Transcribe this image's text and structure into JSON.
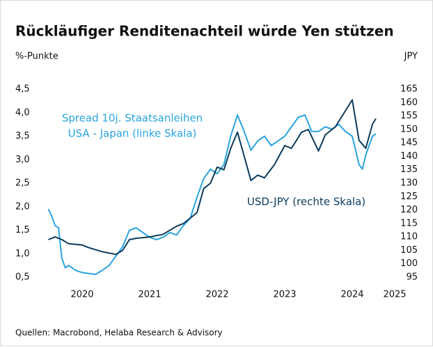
{
  "chart_data": {
    "type": "line",
    "title": "Rückläufiger Renditenachteil würde Yen stützen",
    "y_label": "%-Punkte",
    "y2_label": "JPY",
    "source": "Quellen: Macrobond, Helaba Research & Advisory",
    "annotations": [
      "Spread 10j. Staatsanleihen",
      "USA - Japan (linke Skala)",
      "USD-JPY (rechte Skala)"
    ],
    "xlim": [
      2020.0,
      2025.0
    ],
    "xticks": [
      2020,
      2021,
      2022,
      2023,
      2024,
      2025
    ],
    "ylim": [
      0.5,
      4.5
    ],
    "yticks": [
      {
        "value": 0.5,
        "label": "0,5"
      },
      {
        "value": 1.0,
        "label": "1,0"
      },
      {
        "value": 1.5,
        "label": "1,5"
      },
      {
        "value": 2.0,
        "label": "2,0"
      },
      {
        "value": 2.5,
        "label": "2,5"
      },
      {
        "value": 3.0,
        "label": "3,0"
      },
      {
        "value": 3.5,
        "label": "3,5"
      },
      {
        "value": 4.0,
        "label": "4,0"
      },
      {
        "value": 4.5,
        "label": "4,5"
      }
    ],
    "y2lim": [
      95,
      165
    ],
    "y2ticks": [
      95,
      100,
      105,
      110,
      115,
      120,
      125,
      130,
      135,
      140,
      145,
      150,
      155,
      160,
      165
    ],
    "grid": false,
    "series": [
      {
        "name": "Spread 10j. Staatsanleihen USA - Japan",
        "color": "#29a3dd",
        "axis": "y",
        "x": [
          2020.0,
          2020.05,
          2020.1,
          2020.15,
          2020.2,
          2020.25,
          2020.3,
          2020.4,
          2020.5,
          2020.6,
          2020.7,
          2020.8,
          2020.9,
          2021.0,
          2021.1,
          2021.2,
          2021.3,
          2021.4,
          2021.5,
          2021.6,
          2021.7,
          2021.8,
          2021.9,
          2022.0,
          2022.1,
          2022.2,
          2022.3,
          2022.4,
          2022.5,
          2022.6,
          2022.7,
          2022.8,
          2022.9,
          2023.0,
          2023.1,
          2023.2,
          2023.3,
          2023.4,
          2023.5,
          2023.6,
          2023.7,
          2023.8,
          2023.9,
          2024.0,
          2024.1,
          2024.2,
          2024.3,
          2024.4,
          2024.5,
          2024.6,
          2024.65,
          2024.7,
          2024.8,
          2024.85
        ],
        "values": [
          1.95,
          1.8,
          1.6,
          1.55,
          0.9,
          0.7,
          0.75,
          0.65,
          0.6,
          0.58,
          0.56,
          0.65,
          0.75,
          0.95,
          1.15,
          1.5,
          1.55,
          1.45,
          1.35,
          1.3,
          1.35,
          1.45,
          1.4,
          1.6,
          1.75,
          2.2,
          2.6,
          2.8,
          2.7,
          2.9,
          3.5,
          3.95,
          3.6,
          3.2,
          3.4,
          3.5,
          3.3,
          3.4,
          3.5,
          3.7,
          3.9,
          3.95,
          3.6,
          3.6,
          3.7,
          3.65,
          3.75,
          3.6,
          3.5,
          2.9,
          2.8,
          3.1,
          3.5,
          3.55
        ]
      },
      {
        "name": "USD-JPY",
        "color": "#0b3a5c",
        "axis": "y2",
        "x": [
          2020.0,
          2020.1,
          2020.2,
          2020.3,
          2020.5,
          2020.6,
          2020.8,
          2021.0,
          2021.1,
          2021.2,
          2021.3,
          2021.5,
          2021.7,
          2021.9,
          2022.0,
          2022.2,
          2022.3,
          2022.4,
          2022.5,
          2022.6,
          2022.7,
          2022.8,
          2022.9,
          2023.0,
          2023.1,
          2023.2,
          2023.35,
          2023.5,
          2023.6,
          2023.75,
          2023.85,
          2024.0,
          2024.1,
          2024.25,
          2024.35,
          2024.5,
          2024.6,
          2024.7,
          2024.8,
          2024.85
        ],
        "values": [
          109,
          110,
          109,
          107.5,
          107,
          106,
          104.5,
          103.5,
          105,
          109,
          109.5,
          110,
          111,
          114,
          115,
          119,
          128,
          130,
          136,
          135,
          143,
          149,
          140,
          131,
          133,
          132,
          137,
          144,
          143,
          149,
          150,
          142,
          148,
          151,
          155,
          161,
          146,
          143,
          152,
          154
        ]
      }
    ]
  }
}
